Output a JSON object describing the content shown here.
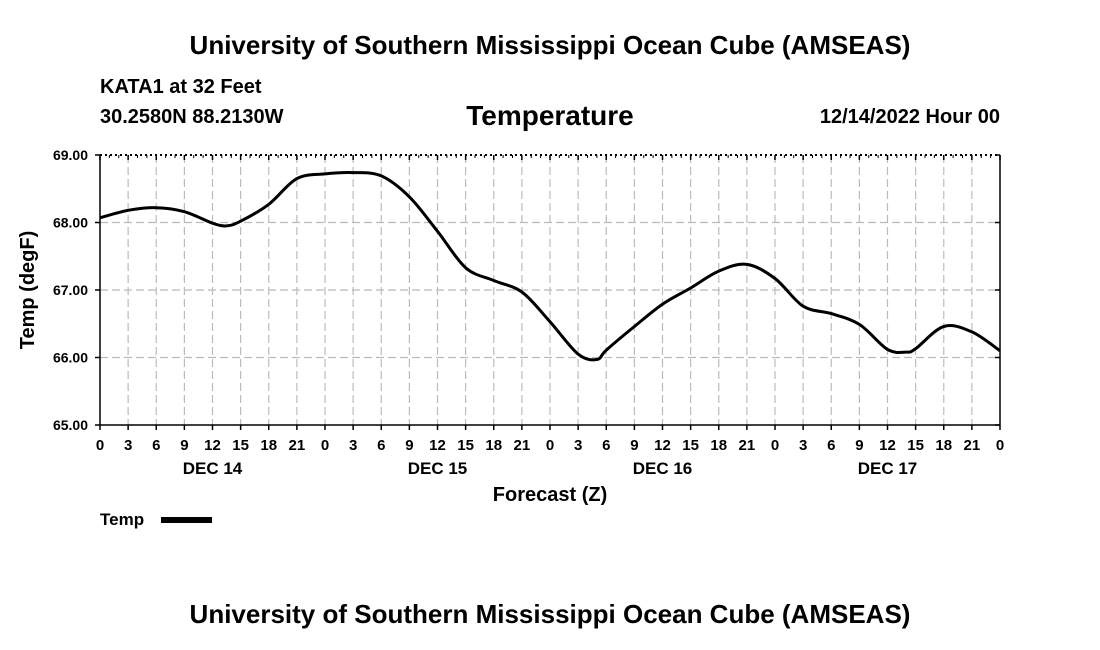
{
  "header": {
    "title": "University of Southern Mississippi Ocean Cube (AMSEAS)",
    "station": "KATA1 at 32 Feet",
    "coords": "30.2580N  88.2130W",
    "date": "12/14/2022 Hour 00"
  },
  "footer": {
    "title": "University of Southern Mississippi Ocean Cube (AMSEAS)"
  },
  "colors": {
    "line": "#000000",
    "grid": "#bbbbbb",
    "background": "#ffffff"
  },
  "chart_data": {
    "type": "line",
    "title": "Temperature",
    "xlabel": "Forecast (Z)",
    "ylabel": "Temp (degF)",
    "ylim": [
      65.0,
      69.0
    ],
    "xlim": [
      0,
      96
    ],
    "yticks": [
      65.0,
      66.0,
      67.0,
      68.0,
      69.0
    ],
    "ytick_labels": [
      "65.00",
      "66.00",
      "67.00",
      "68.00",
      "69.00"
    ],
    "xtick_hours": [
      0,
      3,
      6,
      9,
      12,
      15,
      18,
      21,
      24,
      27,
      30,
      33,
      36,
      39,
      42,
      45,
      48,
      51,
      54,
      57,
      60,
      63,
      66,
      69,
      72,
      75,
      78,
      81,
      84,
      87,
      90,
      93,
      96
    ],
    "xtick_labels": [
      "0",
      "3",
      "6",
      "9",
      "12",
      "15",
      "18",
      "21",
      "0",
      "3",
      "6",
      "9",
      "12",
      "15",
      "18",
      "21",
      "0",
      "3",
      "6",
      "9",
      "12",
      "15",
      "18",
      "21",
      "0",
      "3",
      "6",
      "9",
      "12",
      "15",
      "18",
      "21",
      "0"
    ],
    "day_labels": [
      {
        "hour": 12,
        "label": "DEC 14"
      },
      {
        "hour": 36,
        "label": "DEC 15"
      },
      {
        "hour": 60,
        "label": "DEC 16"
      },
      {
        "hour": 84,
        "label": "DEC 17"
      }
    ],
    "grid": true,
    "legend": {
      "position": "bottom-left",
      "label": "Temp"
    },
    "series": [
      {
        "name": "Temp",
        "x": [
          0,
          3,
          6,
          9,
          12,
          13.5,
          15,
          18,
          21,
          24,
          27,
          30,
          33,
          36,
          39,
          42,
          45,
          48,
          51,
          53,
          54,
          57,
          60,
          63,
          66,
          69,
          72,
          75,
          78,
          81,
          84,
          86,
          87,
          90,
          93,
          96
        ],
        "values": [
          68.07,
          68.18,
          68.22,
          68.16,
          67.99,
          67.95,
          68.02,
          68.27,
          68.65,
          68.72,
          68.74,
          68.69,
          68.38,
          67.87,
          67.33,
          67.14,
          66.97,
          66.53,
          66.05,
          65.97,
          66.11,
          66.46,
          66.79,
          67.03,
          67.28,
          67.38,
          67.17,
          66.76,
          66.65,
          66.49,
          66.12,
          66.08,
          66.13,
          66.46,
          66.38,
          66.1
        ]
      }
    ]
  }
}
